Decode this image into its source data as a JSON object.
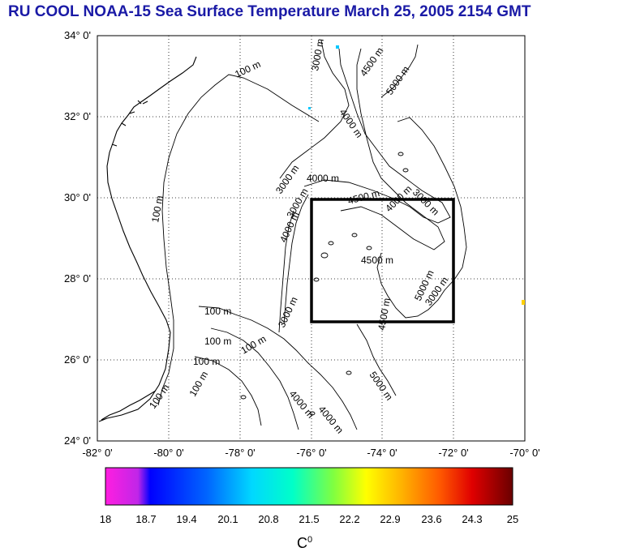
{
  "title": "RU COOL  NOAA-15 Sea Surface Temperature March 25, 2005 2154 GMT",
  "map": {
    "lat_labels": [
      "34° 0'",
      "32° 0'",
      "30° 0'",
      "28° 0'",
      "26° 0'",
      "24° 0'"
    ],
    "lon_labels": [
      "-82° 0'",
      "-80° 0'",
      "-78° 0'",
      "-76° 0'",
      "-74° 0'",
      "-72° 0'",
      "-70° 0'"
    ],
    "lat_range": [
      24,
      34
    ],
    "lon_range": [
      -82,
      -70
    ],
    "grid": "dotted",
    "study_box": {
      "lon": [
        -76,
        -72
      ],
      "lat": [
        27,
        30
      ]
    },
    "contour_labels": [
      "100 m",
      "100 m",
      "3000 m",
      "4500 m",
      "5000 m",
      "4000 m",
      "4000 m",
      "3000 m",
      "4500 m",
      "4000 m",
      "4500 m",
      "3000 m",
      "4000 m",
      "3000 m",
      "4500 m",
      "3000 m",
      "5000 m",
      "100 m",
      "100 m",
      "100 m",
      "100 m",
      "100 m",
      "100 m",
      "3000 m",
      "5000 m",
      "4000 m",
      "4000 m"
    ]
  },
  "colorbar": {
    "ticks": [
      "18",
      "18.7",
      "19.4",
      "20.1",
      "20.8",
      "21.5",
      "22.2",
      "22.9",
      "23.6",
      "24.3",
      "25"
    ],
    "unit": "C",
    "unit_sup": "0",
    "colors": [
      "#ff1ee0",
      "#b02ce8",
      "#0000ff",
      "#0066ff",
      "#00c8ff",
      "#00ffd0",
      "#7fff40",
      "#e8ff00",
      "#ffc800",
      "#ff7800",
      "#ff2000",
      "#b80000",
      "#6a0000"
    ]
  }
}
